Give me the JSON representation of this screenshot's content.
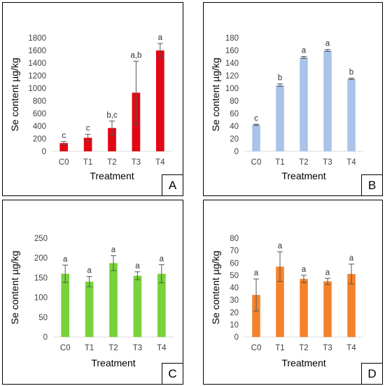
{
  "chart_data": [
    {
      "type": "bar",
      "panel_label": "A",
      "color": "#e30613",
      "categories": [
        "C0",
        "T1",
        "T2",
        "T3",
        "T4"
      ],
      "values": [
        130,
        215,
        370,
        930,
        1600
      ],
      "errors": [
        25,
        55,
        110,
        500,
        110
      ],
      "significance": [
        "c",
        "c",
        "b,c",
        "a,b",
        "a"
      ],
      "ylabel": "Se content µg/kg",
      "xlabel": "Treatment",
      "ylim": [
        0,
        1800
      ],
      "yticks": [
        0,
        200,
        400,
        600,
        800,
        1000,
        1200,
        1400,
        1600,
        1800
      ],
      "grid": false
    },
    {
      "type": "bar",
      "panel_label": "B",
      "color": "#a9c4e8",
      "categories": [
        "C0",
        "T1",
        "T2",
        "T3",
        "T4"
      ],
      "values": [
        42,
        105,
        149,
        160,
        115
      ],
      "errors": [
        1,
        2,
        1.5,
        1.5,
        1
      ],
      "significance": [
        "c",
        "b",
        "a",
        "a",
        "b"
      ],
      "ylabel": "Se content µg/kg",
      "xlabel": "Treatment",
      "ylim": [
        0,
        180
      ],
      "yticks": [
        0,
        20,
        40,
        60,
        80,
        100,
        120,
        140,
        160,
        180
      ],
      "grid": false
    },
    {
      "type": "bar",
      "panel_label": "C",
      "color": "#77d33a",
      "categories": [
        "C0",
        "T1",
        "T2",
        "T3",
        "T4"
      ],
      "values": [
        160,
        140,
        187,
        155,
        160
      ],
      "errors": [
        22,
        13,
        19,
        10,
        23
      ],
      "significance": [
        "a",
        "a",
        "a",
        "a",
        "a"
      ],
      "ylabel": "Se content µg/kg",
      "xlabel": "Treatment",
      "ylim": [
        0,
        250
      ],
      "yticks": [
        0,
        50,
        100,
        150,
        200,
        250
      ],
      "grid": false
    },
    {
      "type": "bar",
      "panel_label": "D",
      "color": "#f5822a",
      "categories": [
        "C0",
        "T1",
        "T2",
        "T3",
        "T4"
      ],
      "values": [
        34,
        57,
        47,
        45,
        51
      ],
      "errors": [
        13,
        12,
        3,
        2.5,
        8
      ],
      "significance": [
        "a",
        "a",
        "a",
        "a",
        "a"
      ],
      "ylabel": "Se content µg/kg",
      "xlabel": "Treatment",
      "ylim": [
        0,
        80
      ],
      "yticks": [
        0,
        10,
        20,
        30,
        40,
        50,
        60,
        70,
        80
      ],
      "grid": false
    }
  ]
}
